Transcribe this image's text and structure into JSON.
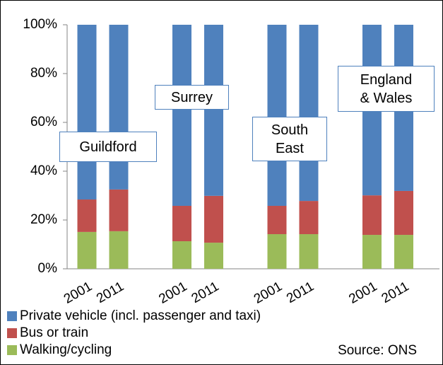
{
  "chart_data": {
    "type": "stacked_bar",
    "categories": [
      "2001",
      "2011",
      "2001",
      "2011",
      "2001",
      "2011",
      "2001",
      "2011"
    ],
    "series": [
      {
        "name": "Private vehicle (incl. passenger and taxi)",
        "color": "#4f81bd",
        "values": [
          71.6,
          67.5,
          74.2,
          70.1,
          74.2,
          72.2,
          69.9,
          68.1
        ]
      },
      {
        "name": "Bus or train",
        "color": "#c0504d",
        "values": [
          13.3,
          17.1,
          14.5,
          19.2,
          11.6,
          13.6,
          16.2,
          18.0
        ]
      },
      {
        "name": "Walking/cycling",
        "color": "#9bbb59",
        "values": [
          15.1,
          15.4,
          11.3,
          10.7,
          14.2,
          14.2,
          13.9,
          13.9
        ]
      }
    ],
    "ylim": [
      0,
      100
    ],
    "yticks": [
      {
        "value": 0,
        "label": "0%"
      },
      {
        "value": 20,
        "label": "20%"
      },
      {
        "value": 40,
        "label": "40%"
      },
      {
        "value": 60,
        "label": "60%"
      },
      {
        "value": 80,
        "label": "80%"
      },
      {
        "value": 100,
        "label": "100%"
      }
    ],
    "annotations": [
      "Guildford",
      "Surrey",
      "South\nEast",
      "England\n& Wales"
    ],
    "source": "Source: ONS"
  }
}
